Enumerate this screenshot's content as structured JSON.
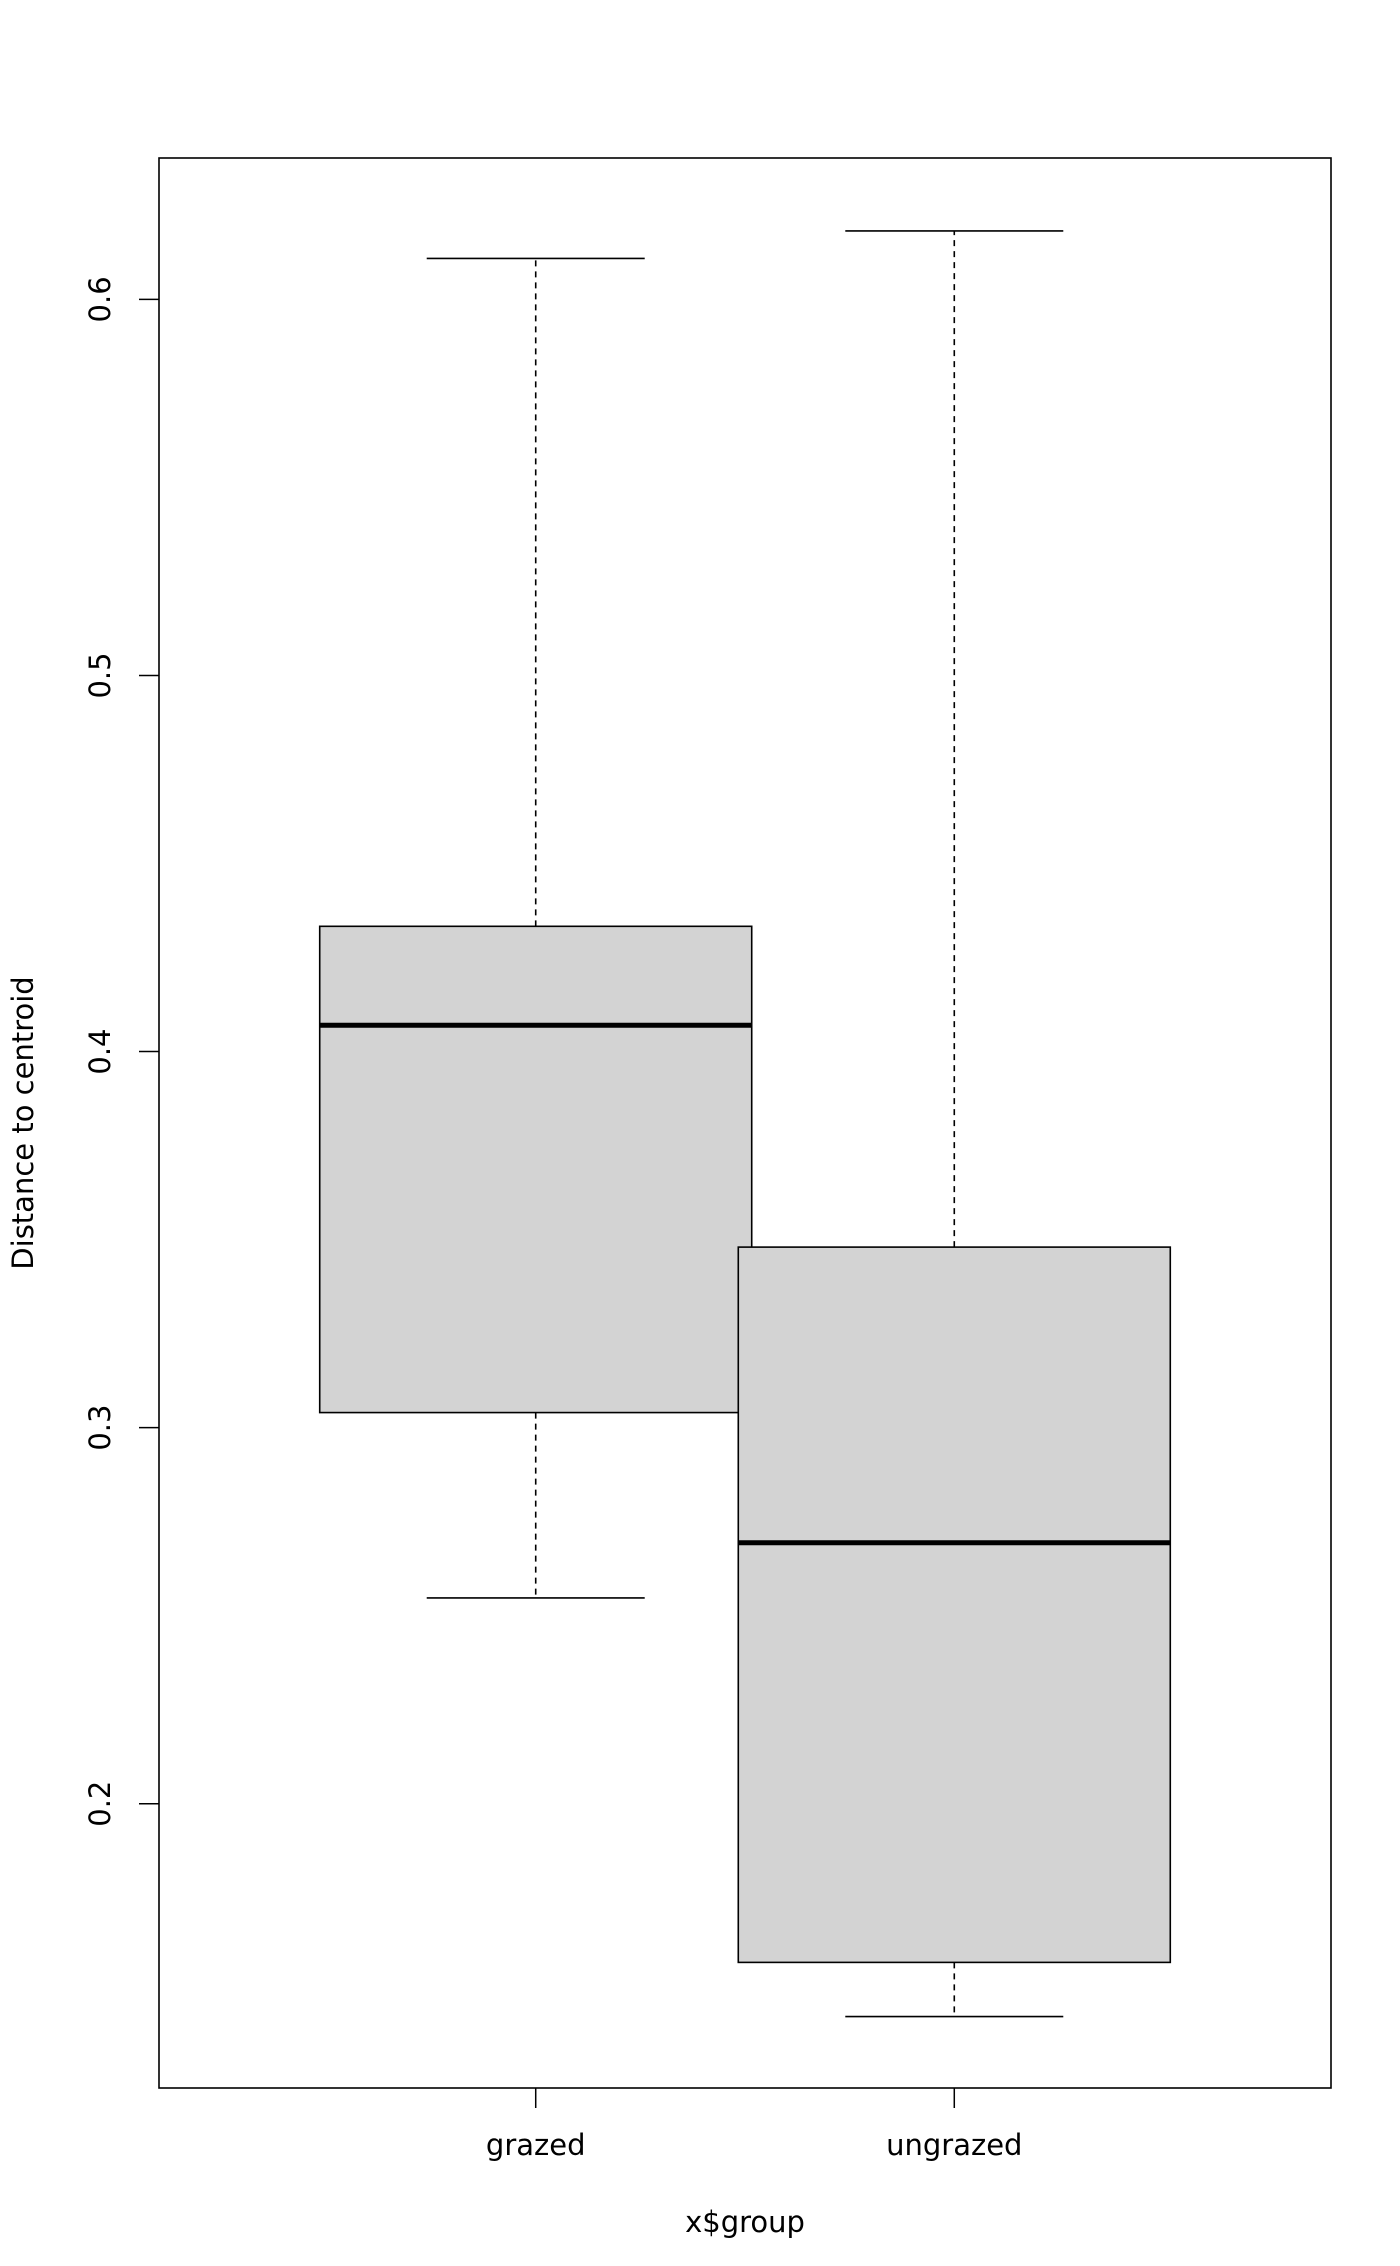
{
  "chart_data": {
    "type": "box",
    "xlabel": "x$group",
    "ylabel": "Distance to centroid",
    "categories": [
      "grazed",
      "ungrazed"
    ],
    "boxes": [
      {
        "whisker_low": 0.2547,
        "q1": 0.304,
        "median": 0.407,
        "q3": 0.4333,
        "whisker_high": 0.6109
      },
      {
        "whisker_low": 0.1434,
        "q1": 0.1578,
        "median": 0.2694,
        "q3": 0.348,
        "whisker_high": 0.6182
      }
    ],
    "color": "#d3d3d3",
    "ylim": [
      0.1244,
      0.6376
    ],
    "yticks": [
      0.2,
      0.3,
      0.4,
      0.5,
      0.6
    ]
  }
}
